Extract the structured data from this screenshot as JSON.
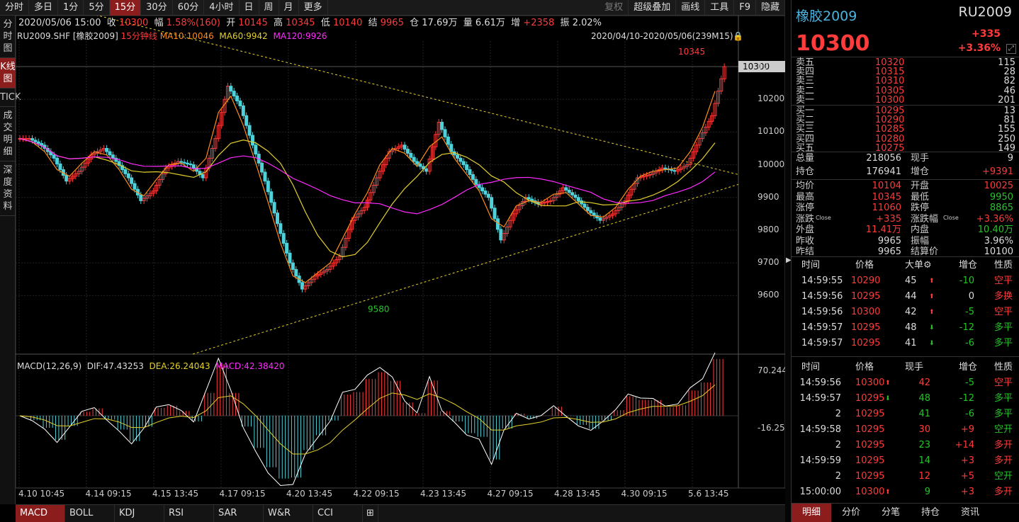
{
  "topbar": {
    "tabs": [
      "分时",
      "多日",
      "1分",
      "5分",
      "15分",
      "30分",
      "60分",
      "4小时",
      "日",
      "周",
      "月",
      "更多"
    ],
    "active": 4,
    "right": [
      "复权",
      "超级叠加",
      "画线",
      "工具",
      "F9",
      "隐藏"
    ]
  },
  "leftbar": {
    "items": [
      "分时图",
      "K线图",
      "TICK",
      "成交明细",
      "深度资料"
    ],
    "active": 1
  },
  "info": {
    "date": "2020/05/06 15:00",
    "close_label": "收",
    "close": "10300",
    "amp_label": "幅",
    "amp": "1.58%(160)",
    "open_label": "开",
    "open": "10145",
    "high_label": "高",
    "high": "10345",
    "low_label": "低",
    "low": "10140",
    "settle_label": "结",
    "settle": "9965",
    "oi_label": "仓",
    "oi": "17.69万",
    "vol_label": "量",
    "vol": "6.61万",
    "inc_label": "增",
    "inc": "+2358",
    "swing_label": "振",
    "swing": "2.02%"
  },
  "legend": {
    "symbol": "RU2009.SHF",
    "name": "[橡胶2009]",
    "period": "15分钟线",
    "ma10": "MA10:10046",
    "ma60": "MA60:9942",
    "ma120": "MA120:9926",
    "range": "2020/04/10-2020/05/06(239M15)"
  },
  "chart_data": {
    "type": "candlestick",
    "y_ticks": [
      10300,
      10200,
      10100,
      10000,
      9900,
      9800,
      9700,
      9600
    ],
    "current_price_tag": "10300",
    "high_mark": "10345",
    "low_mark": "9580",
    "x_labels": [
      "4.10 10:45",
      "4.14 09:15",
      "4.15 13:45",
      "4.17 09:15",
      "4.20 13:45",
      "4.22 09:15",
      "4.23 13:45",
      "4.27 09:15",
      "4.28 13:45",
      "4.30 09:15",
      "5.6 13:45"
    ],
    "close_path": [
      10080,
      10060,
      10020,
      9950,
      9980,
      10030,
      10050,
      10010,
      9960,
      9890,
      9920,
      9990,
      10010,
      10000,
      9960,
      10080,
      10240,
      10180,
      10060,
      9950,
      9820,
      9700,
      9620,
      9660,
      9680,
      9720,
      9830,
      9870,
      9960,
      10040,
      10060,
      10010,
      9980,
      10130,
      10040,
      10000,
      9940,
      9900,
      9770,
      9850,
      9900,
      9880,
      9890,
      9930,
      9900,
      9860,
      9830,
      9850,
      9890,
      9960,
      9970,
      9990,
      9980,
      10000,
      10080,
      10150,
      10300
    ]
  },
  "macd": {
    "label": "MACD(12,26,9)",
    "dif": "DIF:47.43253",
    "dea": "DEA:26.24043",
    "macd": "MACD:42.38420",
    "ymax": "70.24423",
    "ymin": "-16.25274"
  },
  "bottom_tabs": [
    "MACD",
    "BOLL",
    "KDJ",
    "RSI",
    "SAR",
    "W&R",
    "CCI"
  ],
  "quote": {
    "name": "橡胶2009",
    "code": "RU2009",
    "price": "10300",
    "change": "+335",
    "pct": "+3.36%"
  },
  "orderbook": {
    "asks": [
      {
        "l": "卖五",
        "p": "10320",
        "v": "115"
      },
      {
        "l": "卖四",
        "p": "10315",
        "v": "28"
      },
      {
        "l": "卖三",
        "p": "10310",
        "v": "82"
      },
      {
        "l": "卖二",
        "p": "10305",
        "v": "46"
      },
      {
        "l": "卖一",
        "p": "10300",
        "v": "201"
      }
    ],
    "bids": [
      {
        "l": "买一",
        "p": "10295",
        "v": "13"
      },
      {
        "l": "买二",
        "p": "10290",
        "v": "81"
      },
      {
        "l": "买三",
        "p": "10285",
        "v": "155"
      },
      {
        "l": "买四",
        "p": "10280",
        "v": "250"
      },
      {
        "l": "买五",
        "p": "10275",
        "v": "149"
      }
    ]
  },
  "stats1": [
    {
      "k": "总量",
      "v": "218056",
      "k2": "现手",
      "v2": "9"
    },
    {
      "k": "持仓",
      "v": "176941",
      "k2": "增仓",
      "v2": "+9391"
    }
  ],
  "stats2": [
    {
      "k": "均价",
      "v": "10104",
      "k2": "开盘",
      "v2": "10025"
    },
    {
      "k": "最高",
      "v": "10345",
      "k2": "最低",
      "v2": "9950"
    },
    {
      "k": "涨停",
      "v": "11060",
      "k2": "跌停",
      "v2": "8865"
    },
    {
      "k": "涨跌",
      "ks": "Close",
      "v": "+335",
      "k2": "涨跌幅",
      "k2s": "Close",
      "v2": "+3.36%"
    },
    {
      "k": "外盘",
      "v": "11.41万",
      "k2": "内盘",
      "v2": "10.40万"
    },
    {
      "k": "昨收",
      "v": "9965",
      "k2": "振幅",
      "v2": "3.96%"
    },
    {
      "k": "昨结",
      "v": "9965",
      "k2": "结算价",
      "v2": "10100"
    }
  ],
  "big_table": {
    "headers": [
      "时间",
      "价格",
      "大单",
      "增仓",
      "性质"
    ],
    "rows": [
      {
        "t": "14:59:55",
        "p": "10290",
        "q": "45",
        "d": "up",
        "z": "-10",
        "n": "空平"
      },
      {
        "t": "14:59:56",
        "p": "10295",
        "q": "44",
        "d": "up",
        "z": "0",
        "n": "多换"
      },
      {
        "t": "14:59:56",
        "p": "10300",
        "q": "42",
        "d": "up",
        "z": "-5",
        "n": "空平"
      },
      {
        "t": "14:59:57",
        "p": "10295",
        "q": "48",
        "d": "down",
        "z": "-12",
        "n": "多平"
      },
      {
        "t": "14:59:57",
        "p": "10295",
        "q": "41",
        "d": "down",
        "z": "-6",
        "n": "多平"
      }
    ]
  },
  "tick_table": {
    "headers": [
      "时间",
      "价格",
      "现手",
      "增仓",
      "性质"
    ],
    "rows": [
      {
        "t": "14:59:56",
        "p": "10300",
        "a": "up",
        "q": "42",
        "z": "-5",
        "n": "空平"
      },
      {
        "t": "14:59:57",
        "p": "10295",
        "a": "down",
        "q": "48",
        "z": "-12",
        "n": "多平"
      },
      {
        "t": "2",
        "p": "10295",
        "a": "",
        "q": "41",
        "z": "-6",
        "n": "多平"
      },
      {
        "t": "14:59:58",
        "p": "10295",
        "a": "",
        "q": "30",
        "z": "+9",
        "n": "空开"
      },
      {
        "t": "2",
        "p": "10295",
        "a": "",
        "q": "23",
        "z": "+14",
        "n": "多开"
      },
      {
        "t": "14:59:59",
        "p": "10295",
        "a": "",
        "q": "14",
        "z": "+3",
        "n": "多开"
      },
      {
        "t": "2",
        "p": "10295",
        "a": "",
        "q": "12",
        "z": "+5",
        "n": "空开"
      },
      {
        "t": "15:00:00",
        "p": "10300",
        "a": "up",
        "q": "9",
        "z": "+3",
        "n": "多开"
      }
    ]
  },
  "right_tabs": [
    "明细",
    "分价",
    "分笔",
    "持仓",
    "资讯"
  ],
  "colors": {
    "up": "#ff3b3b",
    "down": "#26c32b",
    "accent": "#8b1d1d"
  }
}
